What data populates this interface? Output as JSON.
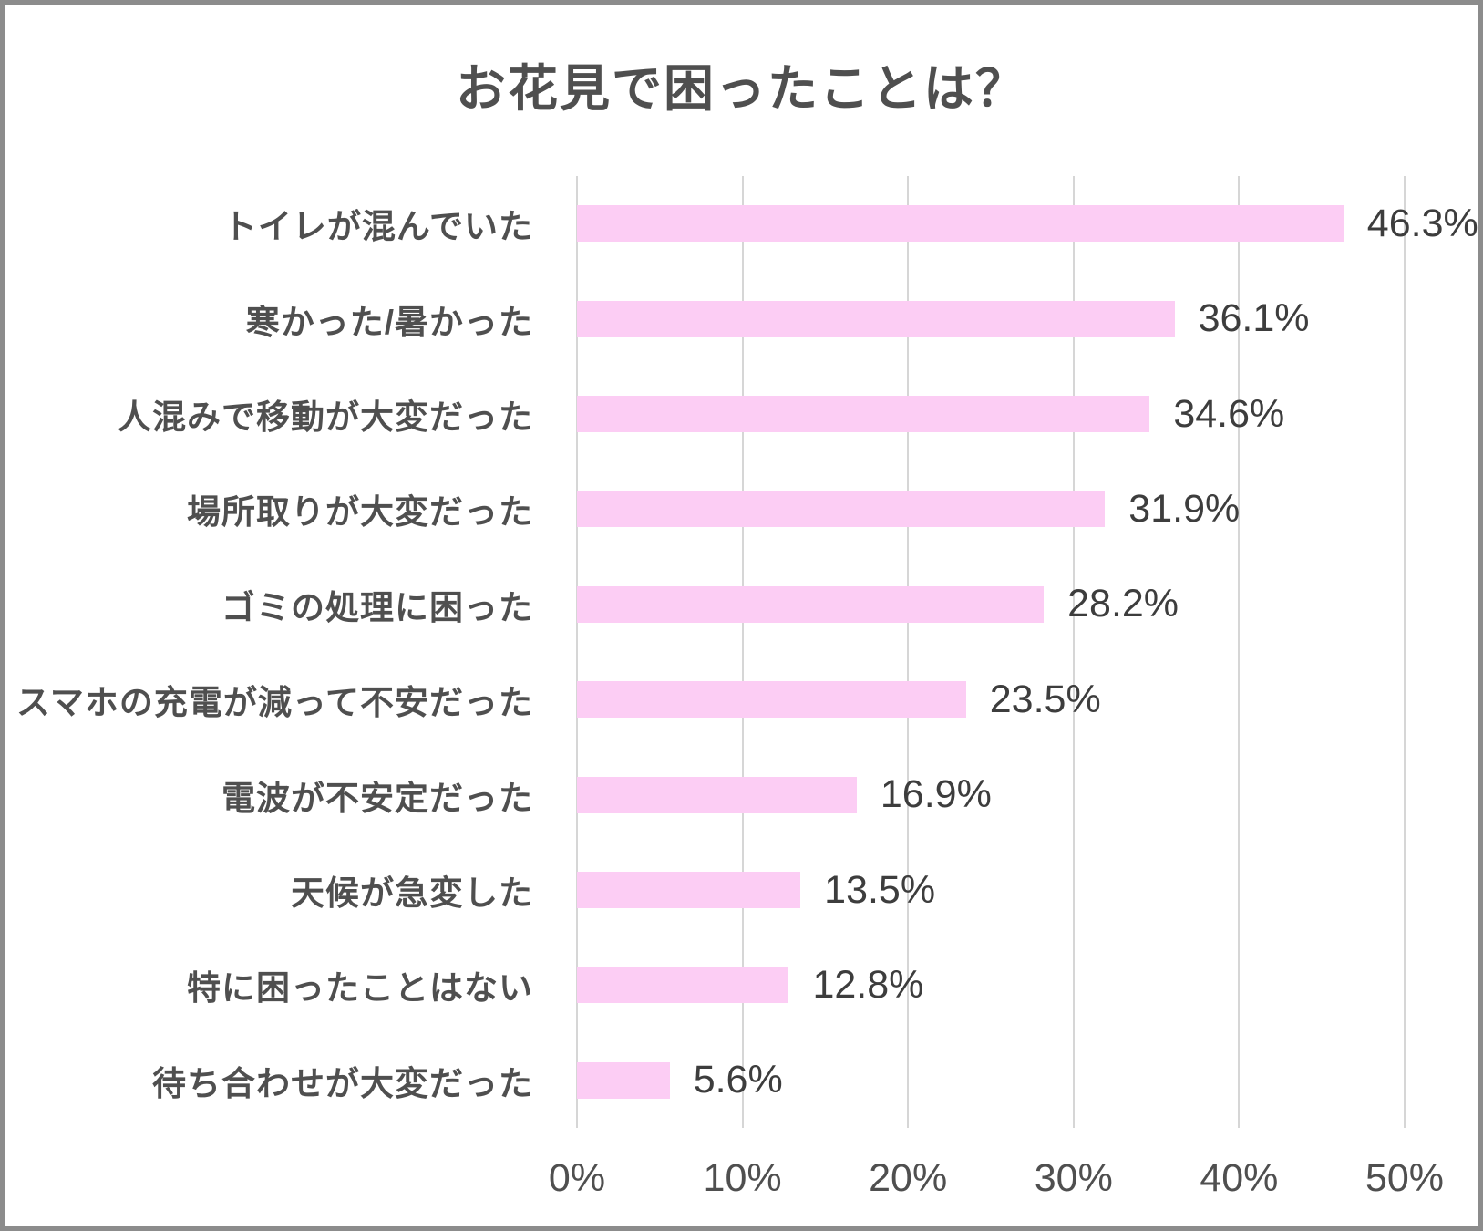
{
  "frame": {
    "border_color": "#8c8c8c",
    "background": "#ffffff"
  },
  "chart_data": {
    "type": "bar",
    "orientation": "horizontal",
    "title": "お花見で困ったことは？",
    "categories": [
      "トイレが混んでいた",
      "寒かった/暑かった",
      "人混みで移動が大変だった",
      "場所取りが大変だった",
      "ゴミの処理に困った",
      "スマホの充電が減って不安だった",
      "電波が不安定だった",
      "天候が急変した",
      "特に困ったことはない",
      "待ち合わせが大変だった"
    ],
    "values": [
      46.3,
      36.1,
      34.6,
      31.9,
      28.2,
      23.5,
      16.9,
      13.5,
      12.8,
      5.6
    ],
    "value_labels": [
      "46.3%",
      "36.1%",
      "34.6%",
      "31.9%",
      "28.2%",
      "23.5%",
      "16.9%",
      "13.5%",
      "12.8%",
      "5.6%"
    ],
    "xlabel": "",
    "ylabel": "",
    "xlim": [
      0,
      50
    ],
    "x_ticks": [
      "0%",
      "10%",
      "20%",
      "30%",
      "40%",
      "50%"
    ],
    "x_tick_values": [
      0,
      10,
      20,
      30,
      40,
      50
    ],
    "grid": "vertical",
    "legend": "none",
    "bar_color": "#fccdf4",
    "grid_color": "#d6d6d6",
    "text_color": "#4f4f4f",
    "value_text_color": "#3d3d3d"
  }
}
